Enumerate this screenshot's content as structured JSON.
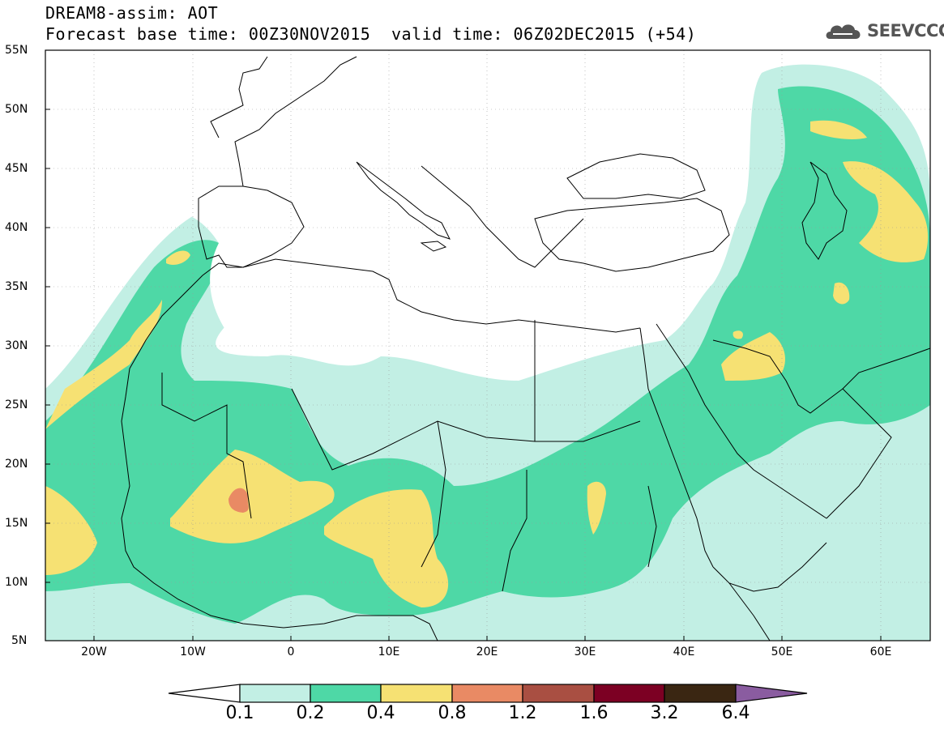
{
  "header": {
    "line1": "DREAM8-assim: AOT",
    "line2": "Forecast base time: 00Z30NOV2015",
    "valid": "valid time: 06Z02DEC2015 (+54)"
  },
  "logo": {
    "text": "SEEVCCC",
    "icon": "cloud-logo-icon"
  },
  "axes": {
    "lat_labels": [
      "55N",
      "50N",
      "45N",
      "40N",
      "35N",
      "30N",
      "25N",
      "20N",
      "15N",
      "10N",
      "5N"
    ],
    "lon_labels": [
      "20W",
      "10W",
      "0",
      "10E",
      "20E",
      "30E",
      "40E",
      "50E",
      "60E"
    ],
    "lat_range": [
      5,
      55
    ],
    "lon_range": [
      -25,
      65
    ]
  },
  "colorbar": {
    "labels": [
      "0.1",
      "0.2",
      "0.4",
      "0.8",
      "1.2",
      "1.6",
      "3.2",
      "6.4"
    ],
    "colors": [
      "#ffffff",
      "#c2efe4",
      "#4ed8a6",
      "#f6e173",
      "#e98a64",
      "#a94f42",
      "#7c0023",
      "#3a2612",
      "#8a5ca0"
    ]
  },
  "colors": {
    "aot_01": "#c2efe4",
    "aot_02": "#4ed8a6",
    "aot_04": "#f6e173",
    "aot_08": "#e98a64"
  }
}
